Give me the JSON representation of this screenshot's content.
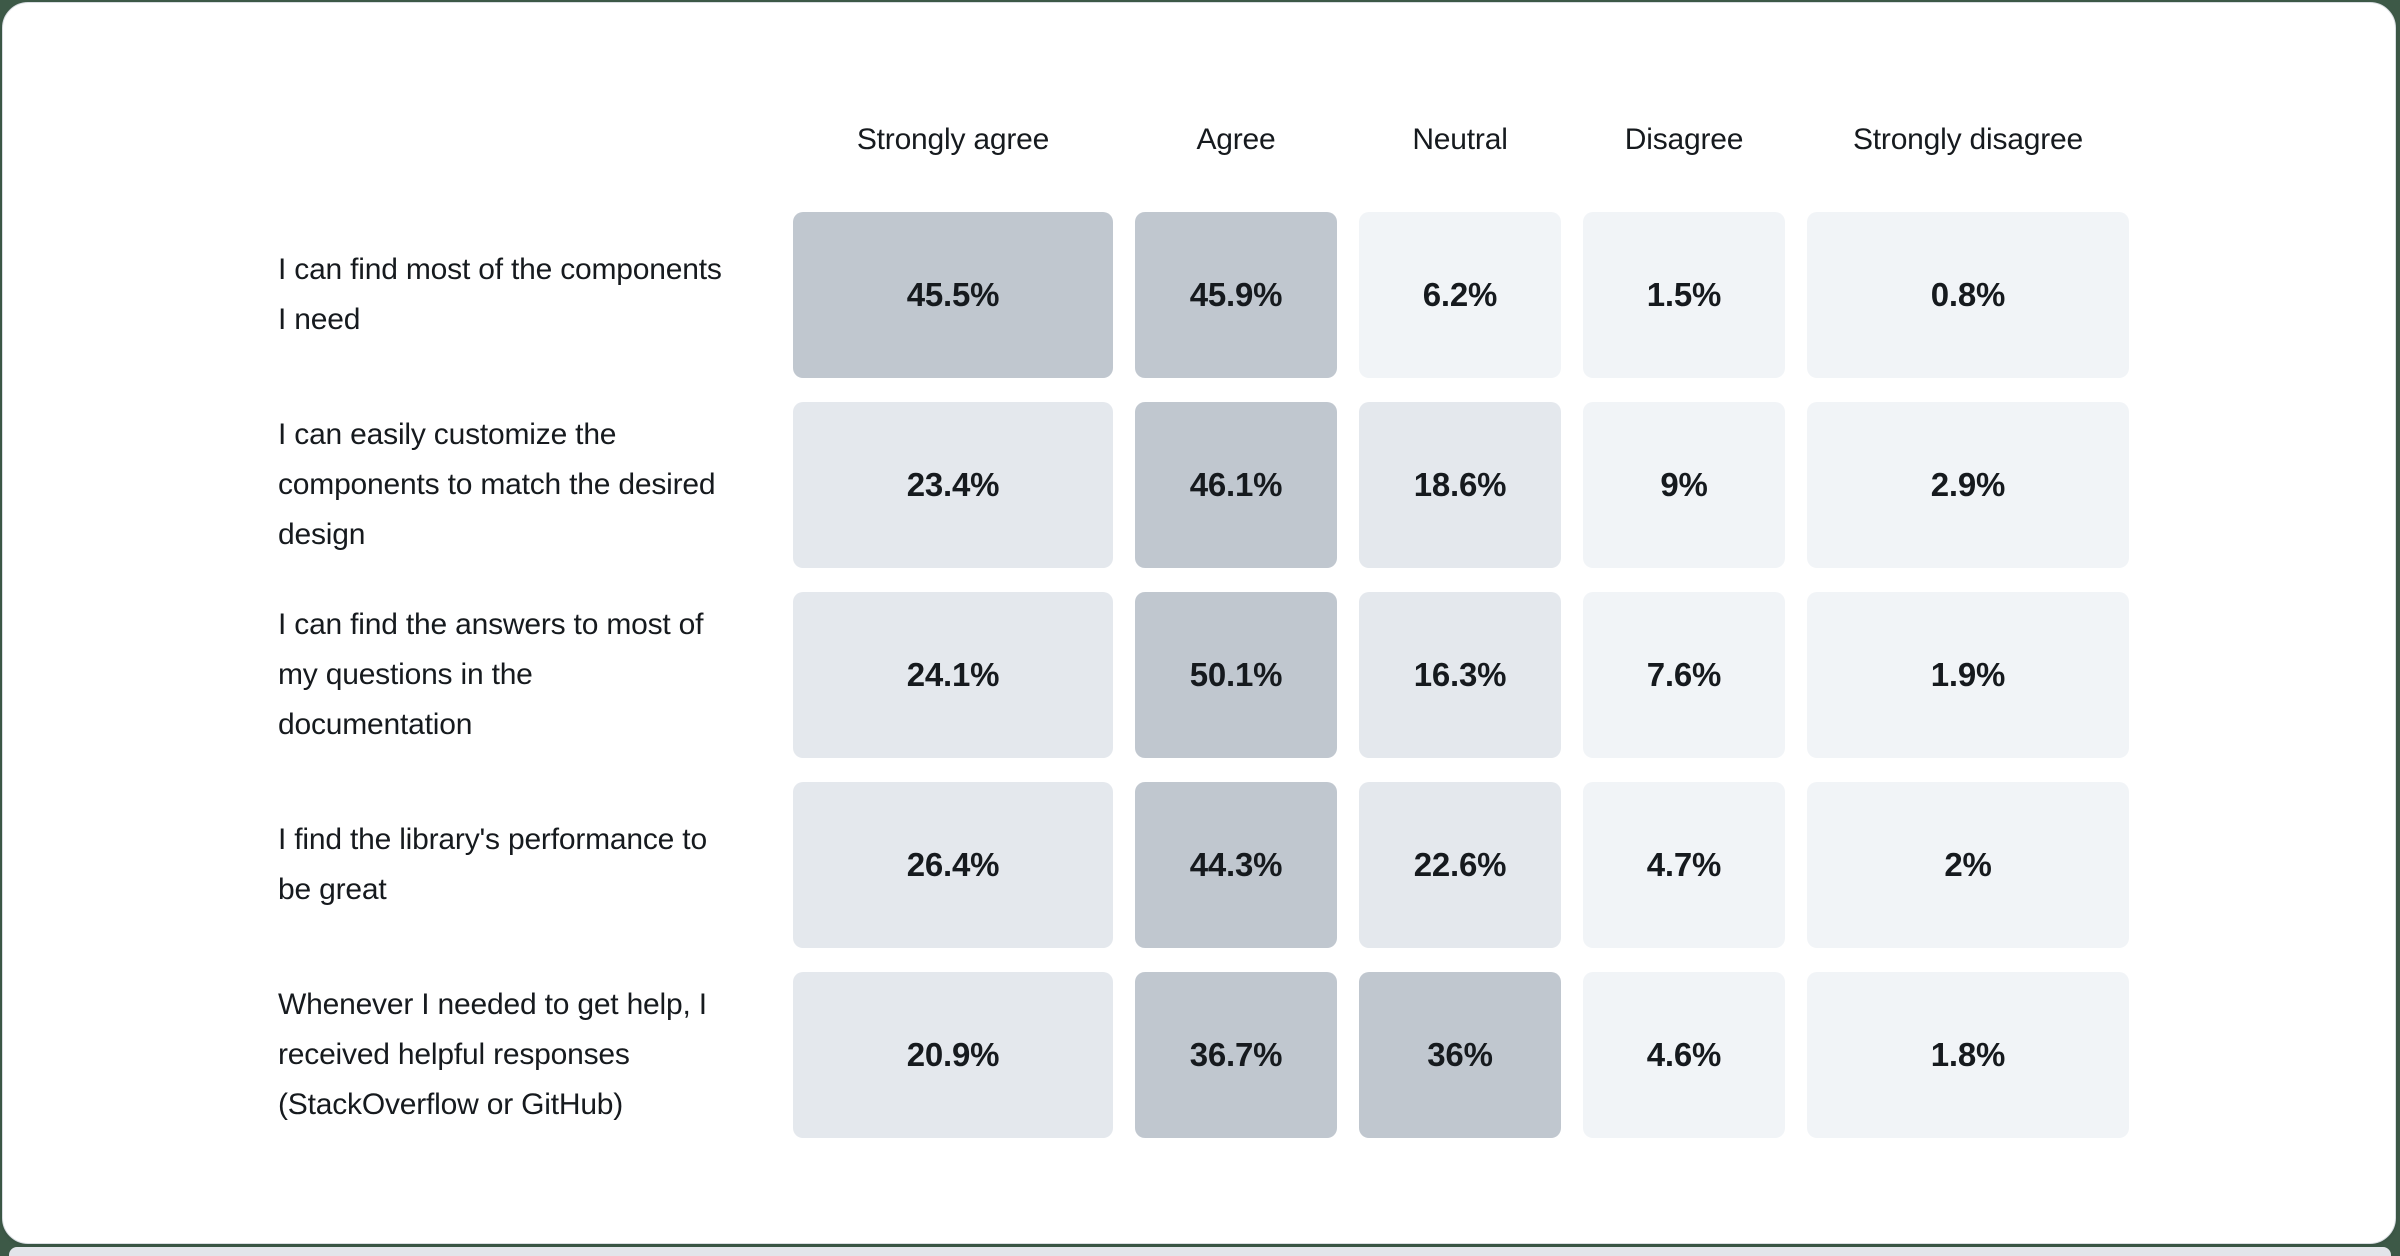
{
  "page": {
    "background_color": "#3d5947",
    "card_background": "#ffffff",
    "card_border_color": "#d9dde2",
    "bottom_strip_color": "#e3e5ea",
    "text_color": "#161a1e"
  },
  "chart_data": {
    "type": "heatmap",
    "title": "",
    "columns": [
      "Strongly agree",
      "Agree",
      "Neutral",
      "Disagree",
      "Strongly disagree"
    ],
    "rows": [
      {
        "label": "I can find most of the components I need",
        "values": [
          45.5,
          45.9,
          6.2,
          1.5,
          0.8
        ],
        "display": [
          "45.5%",
          "45.9%",
          "6.2%",
          "1.5%",
          "0.8%"
        ]
      },
      {
        "label": "I can easily customize the components to match the desired design",
        "values": [
          23.4,
          46.1,
          18.6,
          9,
          2.9
        ],
        "display": [
          "23.4%",
          "46.1%",
          "18.6%",
          "9%",
          "2.9%"
        ]
      },
      {
        "label": "I can find the answers to most of my questions in the documentation",
        "values": [
          24.1,
          50.1,
          16.3,
          7.6,
          1.9
        ],
        "display": [
          "24.1%",
          "50.1%",
          "16.3%",
          "7.6%",
          "1.9%"
        ]
      },
      {
        "label": "I find the library's performance to be great",
        "values": [
          26.4,
          44.3,
          22.6,
          4.7,
          2
        ],
        "display": [
          "26.4%",
          "44.3%",
          "22.6%",
          "4.7%",
          "2%"
        ]
      },
      {
        "label": "Whenever I needed to get help, I received helpful responses (StackOverflow or GitHub)",
        "values": [
          20.9,
          36.7,
          36,
          4.6,
          1.8
        ],
        "display": [
          "20.9%",
          "36.7%",
          "36%",
          "4.6%",
          "1.8%"
        ]
      }
    ],
    "unit": "%",
    "color_scale": {
      "low_color": "#f1f4f7",
      "mid_color": "#e4e8ed",
      "high_color": "#c0c7cf",
      "mid_threshold": 10,
      "high_threshold": 30
    },
    "legend_position": "none",
    "grid_lines": false
  }
}
